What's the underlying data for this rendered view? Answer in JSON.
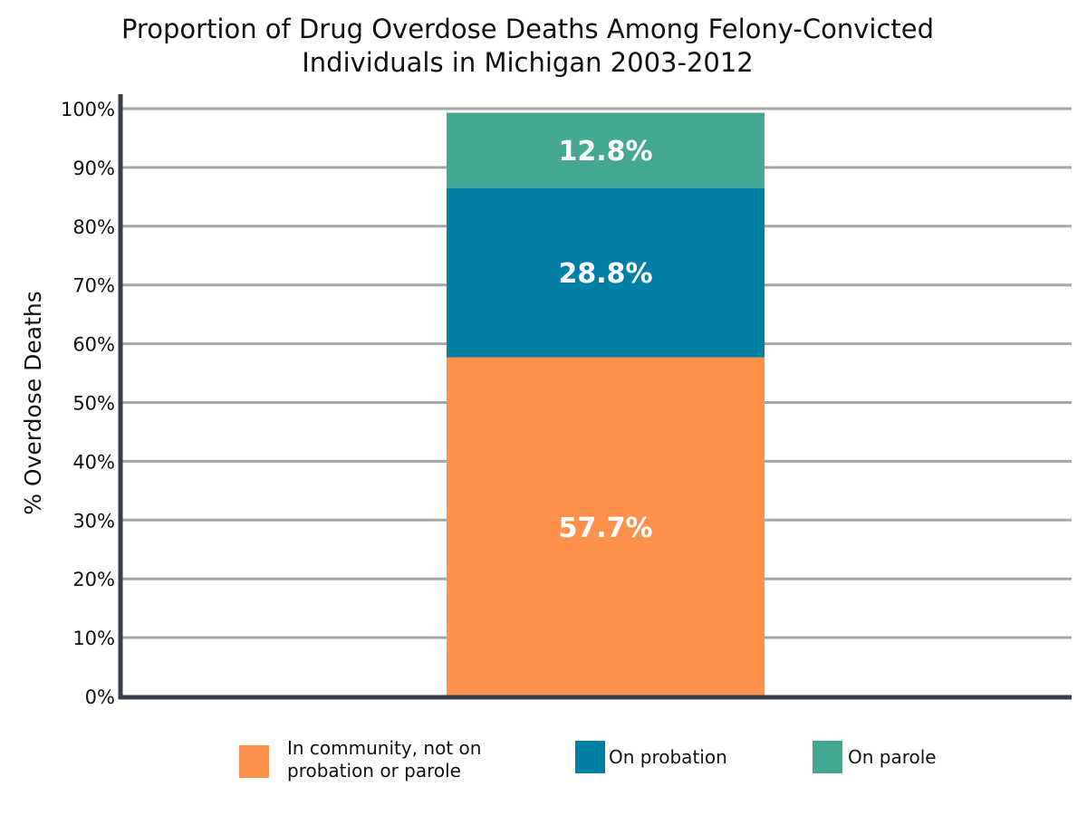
{
  "chart_data": {
    "type": "bar",
    "stacked": true,
    "title": "Proportion of Drug Overdose Deaths Among Felony-Convicted\nIndividuals in Michigan 2003-2012",
    "xlabel": "",
    "ylabel": "% Overdose Deaths",
    "ylim": [
      0,
      100
    ],
    "yticks": [
      "0%",
      "10%",
      "20%",
      "30%",
      "40%",
      "50%",
      "60%",
      "70%",
      "80%",
      "90%",
      "100%"
    ],
    "grid": true,
    "legend_position": "bottom",
    "categories": [
      ""
    ],
    "series": [
      {
        "name": "In community, not on\nprobation or parole",
        "values": [
          57.7
        ],
        "label": "57.7%",
        "color": "#FF914D"
      },
      {
        "name": "On probation",
        "values": [
          28.8
        ],
        "label": "28.8%",
        "color": "#007FA6"
      },
      {
        "name": "On parole",
        "values": [
          12.8
        ],
        "label": "12.8%",
        "color": "#45A894"
      }
    ]
  }
}
